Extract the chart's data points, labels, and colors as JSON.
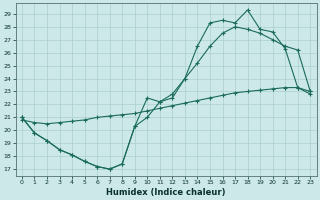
{
  "xlabel": "Humidex (Indice chaleur)",
  "bg_color": "#cce8e8",
  "grid_color": "#aacfcf",
  "line_color": "#1a6b5a",
  "xlim": [
    -0.5,
    23.5
  ],
  "ylim": [
    16.5,
    29.8
  ],
  "yticks": [
    17,
    18,
    19,
    20,
    21,
    22,
    23,
    24,
    25,
    26,
    27,
    28,
    29
  ],
  "xticks": [
    0,
    1,
    2,
    3,
    4,
    5,
    6,
    7,
    8,
    9,
    10,
    11,
    12,
    13,
    14,
    15,
    16,
    17,
    18,
    19,
    20,
    21,
    22,
    23
  ],
  "line1_x": [
    0,
    1,
    2,
    3,
    4,
    5,
    6,
    7,
    8,
    9,
    10,
    11,
    12,
    13,
    14,
    15,
    16,
    17,
    18,
    19,
    20,
    21,
    22,
    23
  ],
  "line1_y": [
    21.0,
    19.8,
    19.2,
    18.5,
    18.1,
    17.6,
    17.2,
    17.0,
    17.4,
    20.3,
    22.5,
    22.2,
    22.5,
    24.0,
    26.5,
    28.3,
    28.5,
    28.3,
    29.3,
    27.8,
    27.6,
    26.3,
    23.3,
    22.8
  ],
  "line2_x": [
    0,
    1,
    2,
    3,
    4,
    5,
    6,
    7,
    8,
    9,
    10,
    11,
    12,
    13,
    14,
    15,
    16,
    17,
    18,
    19,
    20,
    21,
    22,
    23
  ],
  "line2_y": [
    21.0,
    19.8,
    19.2,
    18.5,
    18.1,
    17.6,
    17.2,
    17.0,
    17.4,
    20.3,
    21.0,
    22.2,
    22.8,
    24.0,
    25.2,
    26.5,
    27.5,
    28.0,
    27.8,
    27.5,
    27.0,
    26.5,
    26.2,
    23.0
  ],
  "line3_x": [
    0,
    1,
    2,
    3,
    4,
    5,
    6,
    7,
    8,
    9,
    10,
    11,
    12,
    13,
    14,
    15,
    16,
    17,
    18,
    19,
    20,
    21,
    22,
    23
  ],
  "line3_y": [
    20.8,
    20.6,
    20.5,
    20.6,
    20.7,
    20.8,
    21.0,
    21.1,
    21.2,
    21.3,
    21.5,
    21.7,
    21.9,
    22.1,
    22.3,
    22.5,
    22.7,
    22.9,
    23.0,
    23.1,
    23.2,
    23.3,
    23.3,
    23.0
  ]
}
